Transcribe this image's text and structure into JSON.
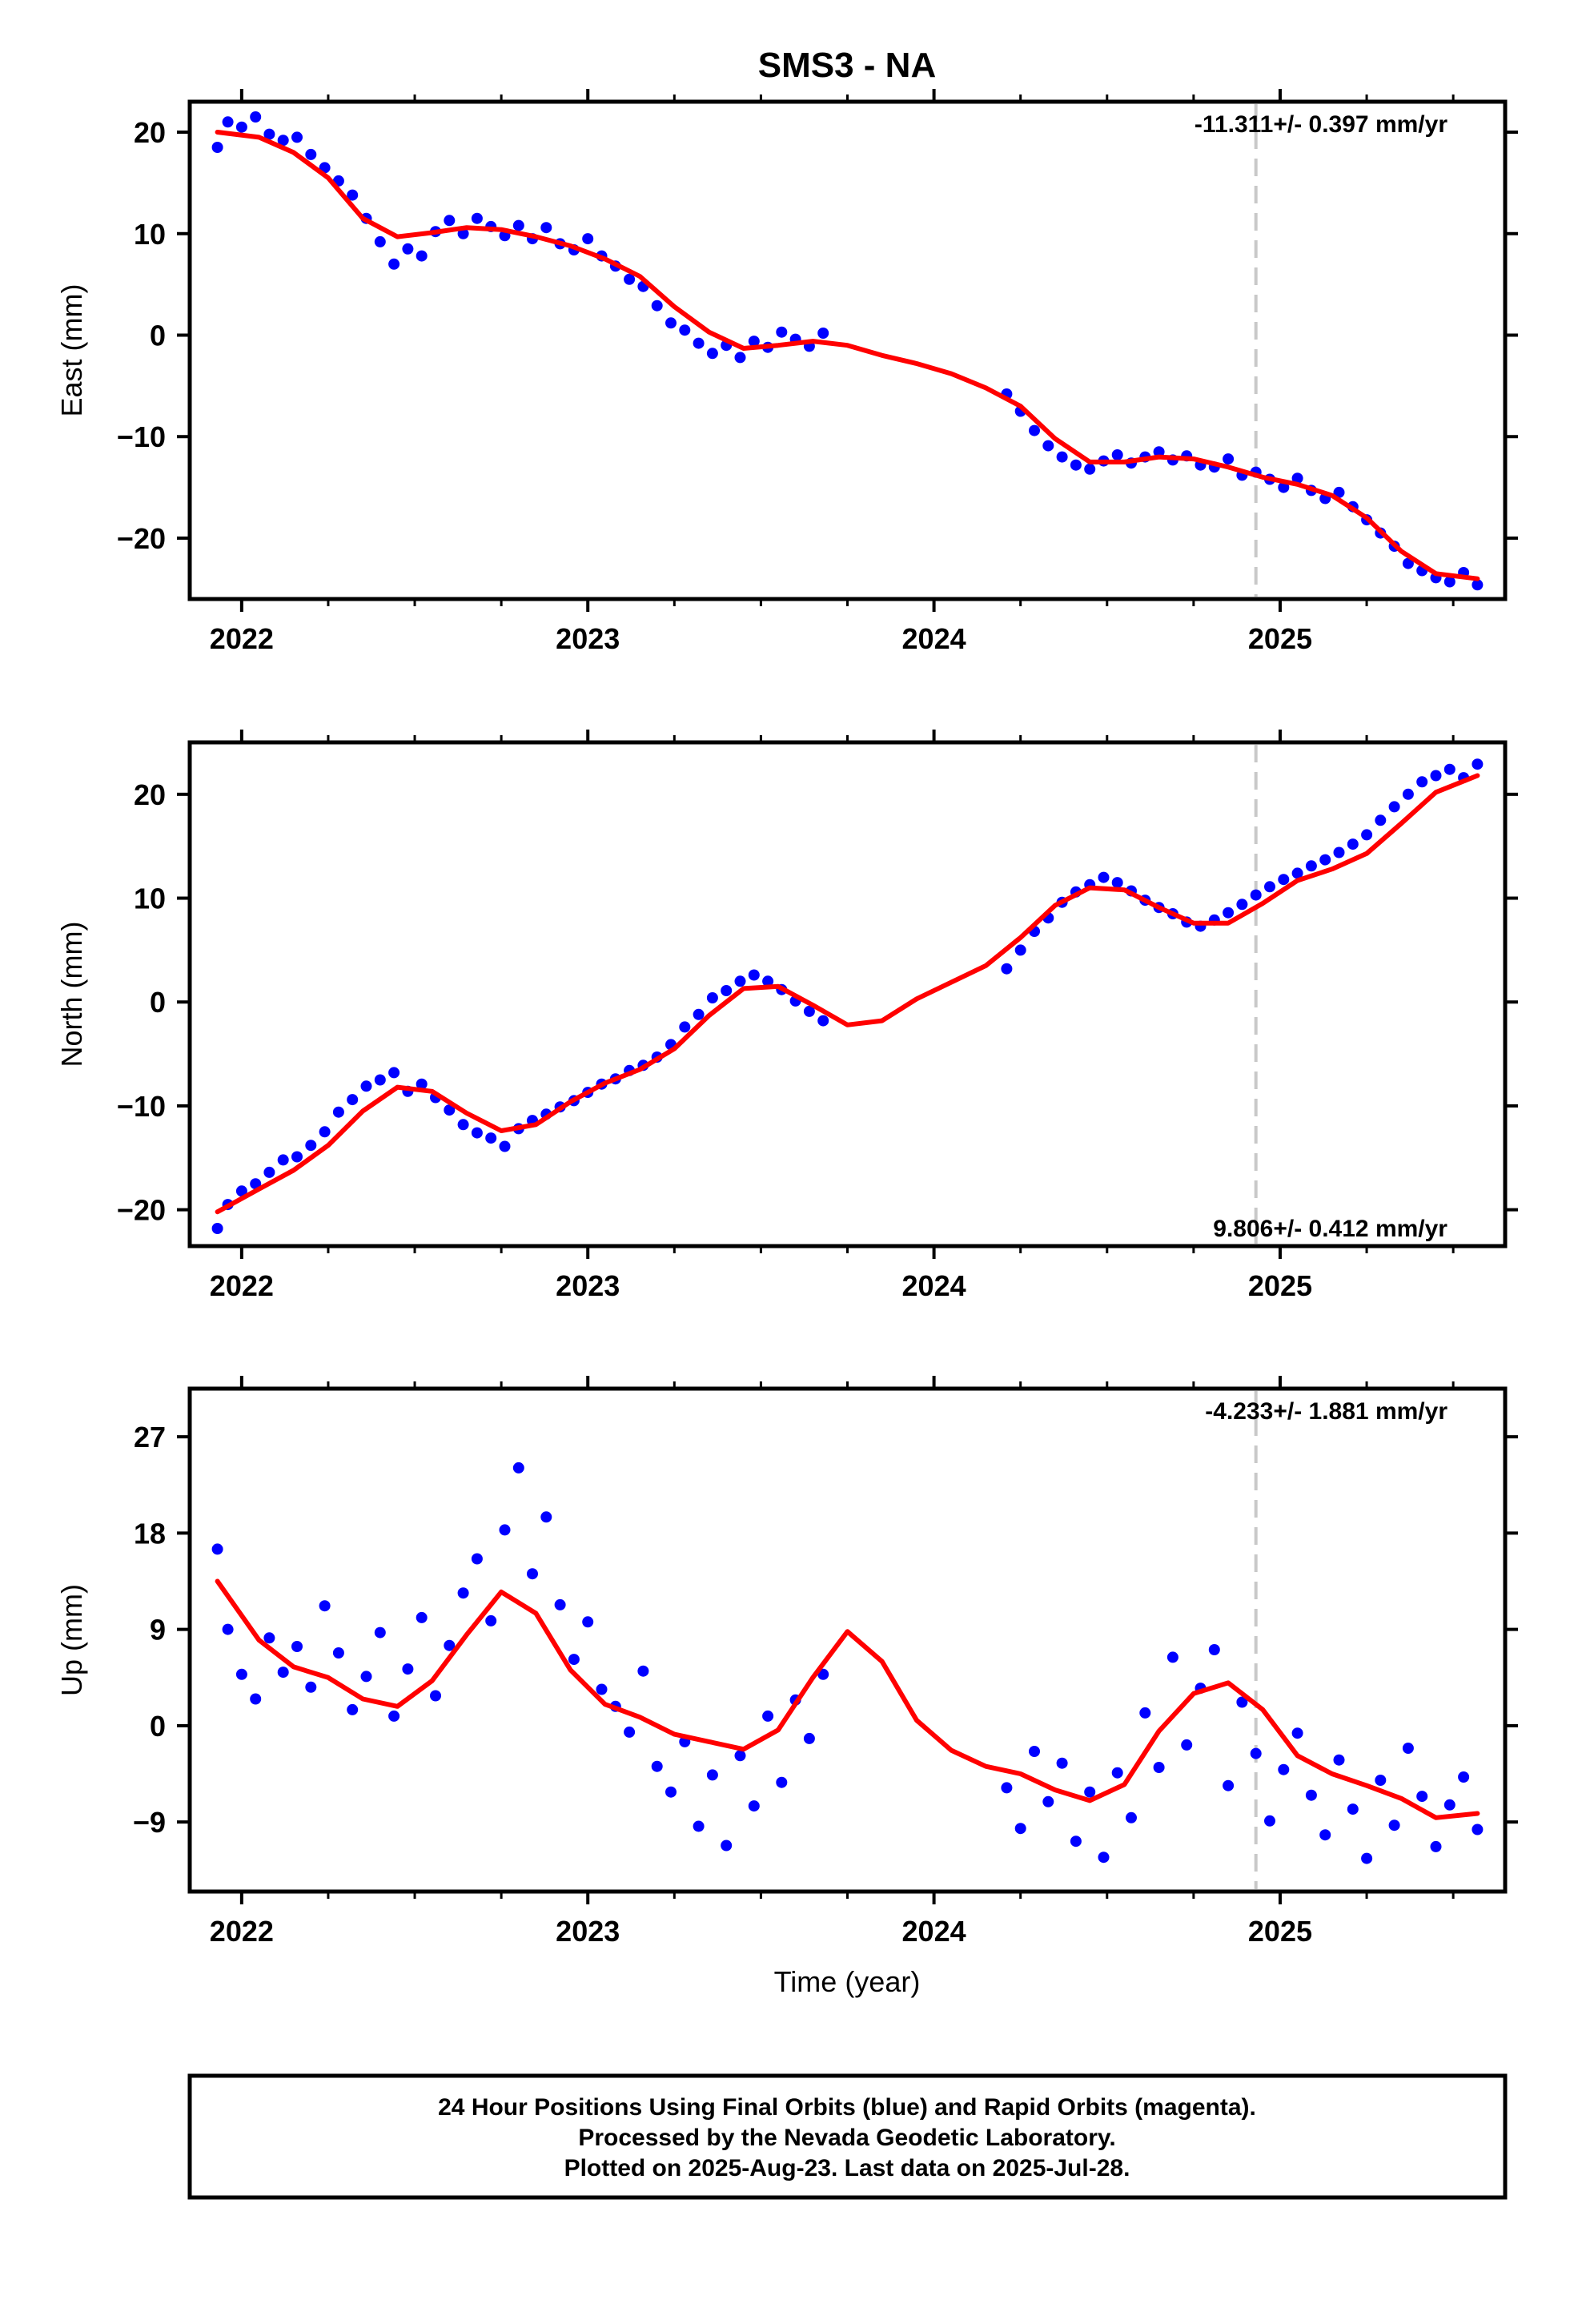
{
  "title": "SMS3 - NA",
  "colors": {
    "final_orbit_points": "#0000ff",
    "model_curve": "#ff0000",
    "reference_line": "#c8c8c8",
    "frame": "#000000"
  },
  "xaxis": {
    "title": "Time (year)",
    "ticks": [
      "2022",
      "2023",
      "2024",
      "2025"
    ]
  },
  "caption": {
    "line1": "24 Hour Positions Using Final Orbits (blue) and Rapid Orbits (magenta).",
    "line2": "Processed by the Nevada Geodetic Laboratory.",
    "line3": "Plotted on 2025-Aug-23. Last data on 2025-Jul-28."
  },
  "chart_data": [
    {
      "type": "scatter",
      "ylabel": "East (mm)",
      "rate_label": "-11.311+/- 0.397 mm/yr",
      "rate_label_position": "top-right",
      "ylim": [
        -26,
        23
      ],
      "xlim": [
        2021.85,
        2025.65
      ],
      "yticks": [
        20,
        10,
        0,
        -10,
        -20
      ],
      "ytick_labels": [
        "20",
        "10",
        "0",
        "−10",
        "−20"
      ],
      "reference_line_x": 2024.93,
      "model_curve": {
        "x": [
          2021.93,
          2022.05,
          2022.15,
          2022.25,
          2022.35,
          2022.45,
          2022.55,
          2022.65,
          2022.75,
          2022.85,
          2022.95,
          2023.05,
          2023.15,
          2023.25,
          2023.35,
          2023.45,
          2023.55,
          2023.65,
          2023.75,
          2023.85,
          2023.95,
          2024.05,
          2024.15,
          2024.25,
          2024.35,
          2024.45,
          2024.55,
          2024.65,
          2024.75,
          2024.85,
          2024.95,
          2025.05,
          2025.15,
          2025.25,
          2025.35,
          2025.45,
          2025.57
        ],
        "y": [
          20,
          19.5,
          18,
          15.5,
          11.5,
          9.7,
          10.1,
          10.6,
          10.4,
          9.7,
          8.8,
          7.5,
          5.8,
          2.8,
          0.3,
          -1.3,
          -1,
          -0.6,
          -1,
          -2,
          -2.8,
          -3.8,
          -5.2,
          -7,
          -10.2,
          -12.5,
          -12.5,
          -12,
          -12.2,
          -13,
          -14,
          -14.7,
          -15.8,
          -18,
          -21.3,
          -23.5,
          -24
        ]
      },
      "points": {
        "x": [
          2021.93,
          2021.96,
          2022.0,
          2022.04,
          2022.08,
          2022.12,
          2022.16,
          2022.2,
          2022.24,
          2022.28,
          2022.32,
          2022.36,
          2022.4,
          2022.44,
          2022.48,
          2022.52,
          2022.56,
          2022.6,
          2022.64,
          2022.68,
          2022.72,
          2022.76,
          2022.8,
          2022.84,
          2022.88,
          2022.92,
          2022.96,
          2023.0,
          2023.04,
          2023.08,
          2023.12,
          2023.16,
          2023.2,
          2023.24,
          2023.28,
          2023.32,
          2023.36,
          2023.4,
          2023.44,
          2023.48,
          2023.52,
          2023.56,
          2023.6,
          2023.64,
          2023.68,
          2024.21,
          2024.25,
          2024.29,
          2024.33,
          2024.37,
          2024.41,
          2024.45,
          2024.49,
          2024.53,
          2024.57,
          2024.61,
          2024.65,
          2024.69,
          2024.73,
          2024.77,
          2024.81,
          2024.85,
          2024.89,
          2024.93,
          2024.97,
          2025.01,
          2025.05,
          2025.09,
          2025.13,
          2025.17,
          2025.21,
          2025.25,
          2025.29,
          2025.33,
          2025.37,
          2025.41,
          2025.45,
          2025.49,
          2025.53,
          2025.57
        ],
        "y": [
          18.5,
          21.0,
          20.5,
          21.5,
          19.8,
          19.2,
          19.5,
          17.8,
          16.5,
          15.2,
          13.8,
          11.5,
          9.2,
          7.0,
          8.5,
          7.8,
          10.2,
          11.3,
          10.0,
          11.5,
          10.7,
          9.8,
          10.8,
          9.5,
          10.6,
          9.0,
          8.4,
          9.5,
          7.8,
          6.8,
          5.5,
          4.8,
          2.9,
          1.2,
          0.5,
          -0.8,
          -1.8,
          -1.0,
          -2.2,
          -0.6,
          -1.2,
          0.3,
          -0.4,
          -1.1,
          0.2,
          -5.8,
          -7.5,
          -9.4,
          -10.9,
          -12.0,
          -12.8,
          -13.2,
          -12.4,
          -11.8,
          -12.6,
          -12.0,
          -11.5,
          -12.3,
          -11.9,
          -12.8,
          -13.0,
          -12.2,
          -13.8,
          -13.5,
          -14.2,
          -15.0,
          -14.1,
          -15.3,
          -16.1,
          -15.5,
          -16.9,
          -18.2,
          -19.5,
          -20.8,
          -22.5,
          -23.2,
          -23.9,
          -24.3,
          -23.4,
          -24.6
        ]
      }
    },
    {
      "type": "scatter",
      "ylabel": "North (mm)",
      "rate_label": "9.806+/- 0.412 mm/yr",
      "rate_label_position": "bottom-right",
      "ylim": [
        -23.5,
        25
      ],
      "xlim": [
        2021.85,
        2025.65
      ],
      "yticks": [
        20,
        10,
        0,
        -10,
        -20
      ],
      "ytick_labels": [
        "20",
        "10",
        "0",
        "−10",
        "−20"
      ],
      "reference_line_x": 2024.93,
      "model_curve": {
        "x": [
          2021.93,
          2022.05,
          2022.15,
          2022.25,
          2022.35,
          2022.45,
          2022.55,
          2022.65,
          2022.75,
          2022.85,
          2022.95,
          2023.05,
          2023.15,
          2023.25,
          2023.35,
          2023.45,
          2023.55,
          2023.65,
          2023.75,
          2023.85,
          2023.95,
          2024.05,
          2024.15,
          2024.25,
          2024.35,
          2024.45,
          2024.55,
          2024.65,
          2024.75,
          2024.85,
          2024.95,
          2025.05,
          2025.15,
          2025.25,
          2025.35,
          2025.45,
          2025.57
        ],
        "y": [
          -20.2,
          -18,
          -16.2,
          -13.8,
          -10.5,
          -8.2,
          -8.6,
          -10.7,
          -12.4,
          -11.8,
          -9.6,
          -7.8,
          -6.5,
          -4.5,
          -1.3,
          1.3,
          1.5,
          -0.3,
          -2.2,
          -1.8,
          0.3,
          1.9,
          3.5,
          6.2,
          9.3,
          11,
          10.8,
          9.1,
          7.6,
          7.6,
          9.5,
          11.7,
          12.8,
          14.3,
          17.2,
          20.2,
          21.8
        ]
      },
      "points": {
        "x": [
          2021.93,
          2021.96,
          2022.0,
          2022.04,
          2022.08,
          2022.12,
          2022.16,
          2022.2,
          2022.24,
          2022.28,
          2022.32,
          2022.36,
          2022.4,
          2022.44,
          2022.48,
          2022.52,
          2022.56,
          2022.6,
          2022.64,
          2022.68,
          2022.72,
          2022.76,
          2022.8,
          2022.84,
          2022.88,
          2022.92,
          2022.96,
          2023.0,
          2023.04,
          2023.08,
          2023.12,
          2023.16,
          2023.2,
          2023.24,
          2023.28,
          2023.32,
          2023.36,
          2023.4,
          2023.44,
          2023.48,
          2023.52,
          2023.56,
          2023.6,
          2023.64,
          2023.68,
          2024.21,
          2024.25,
          2024.29,
          2024.33,
          2024.37,
          2024.41,
          2024.45,
          2024.49,
          2024.53,
          2024.57,
          2024.61,
          2024.65,
          2024.69,
          2024.73,
          2024.77,
          2024.81,
          2024.85,
          2024.89,
          2024.93,
          2024.97,
          2025.01,
          2025.05,
          2025.09,
          2025.13,
          2025.17,
          2025.21,
          2025.25,
          2025.29,
          2025.33,
          2025.37,
          2025.41,
          2025.45,
          2025.49,
          2025.53,
          2025.57
        ],
        "y": [
          -21.8,
          -19.5,
          -18.2,
          -17.5,
          -16.4,
          -15.2,
          -14.9,
          -13.8,
          -12.5,
          -10.6,
          -9.4,
          -8.1,
          -7.5,
          -6.8,
          -8.6,
          -7.9,
          -9.2,
          -10.4,
          -11.8,
          -12.6,
          -13.1,
          -13.9,
          -12.2,
          -11.4,
          -10.8,
          -10.1,
          -9.5,
          -8.7,
          -7.9,
          -7.4,
          -6.6,
          -6.1,
          -5.3,
          -4.1,
          -2.4,
          -1.2,
          0.4,
          1.1,
          2.0,
          2.6,
          2.0,
          1.2,
          0.1,
          -0.9,
          -1.8,
          3.2,
          5.0,
          6.8,
          8.1,
          9.6,
          10.6,
          11.3,
          12.0,
          11.5,
          10.7,
          9.8,
          9.1,
          8.5,
          7.7,
          7.3,
          7.9,
          8.6,
          9.4,
          10.3,
          11.1,
          11.8,
          12.4,
          13.1,
          13.7,
          14.4,
          15.2,
          16.1,
          17.5,
          18.8,
          20.0,
          21.2,
          21.8,
          22.4,
          21.6,
          22.9
        ]
      }
    },
    {
      "type": "scatter",
      "ylabel": "Up (mm)",
      "xlabel": "Time (year)",
      "rate_label": "-4.233+/- 1.881 mm/yr",
      "rate_label_position": "top-right",
      "ylim": [
        -15.5,
        31.5
      ],
      "xlim": [
        2021.85,
        2025.65
      ],
      "yticks": [
        27,
        18,
        9,
        0,
        -9
      ],
      "ytick_labels": [
        "27",
        "18",
        "9",
        "0",
        "−9"
      ],
      "reference_line_x": 2024.93,
      "model_curve": {
        "x": [
          2021.93,
          2022.05,
          2022.15,
          2022.25,
          2022.35,
          2022.45,
          2022.55,
          2022.65,
          2022.75,
          2022.85,
          2022.95,
          2023.05,
          2023.15,
          2023.25,
          2023.35,
          2023.45,
          2023.55,
          2023.65,
          2023.75,
          2023.85,
          2023.95,
          2024.05,
          2024.15,
          2024.25,
          2024.35,
          2024.45,
          2024.55,
          2024.65,
          2024.75,
          2024.85,
          2024.95,
          2025.05,
          2025.15,
          2025.25,
          2025.35,
          2025.45,
          2025.57
        ],
        "y": [
          13.5,
          8,
          5.5,
          4.5,
          2.5,
          1.8,
          4.2,
          8.5,
          12.5,
          10.5,
          5.2,
          2,
          0.8,
          -0.8,
          -1.5,
          -2.2,
          -0.4,
          4.5,
          8.8,
          6,
          0.5,
          -2.3,
          -3.8,
          -4.5,
          -6,
          -7,
          -5.5,
          -0.5,
          3,
          4,
          1.5,
          -2.8,
          -4.5,
          -5.6,
          -6.8,
          -8.6,
          -8.2
        ]
      },
      "points": {
        "x": [
          2021.93,
          2021.96,
          2022.0,
          2022.04,
          2022.08,
          2022.12,
          2022.16,
          2022.2,
          2022.24,
          2022.28,
          2022.32,
          2022.36,
          2022.4,
          2022.44,
          2022.48,
          2022.52,
          2022.56,
          2022.6,
          2022.64,
          2022.68,
          2022.72,
          2022.76,
          2022.8,
          2022.84,
          2022.88,
          2022.92,
          2022.96,
          2023.0,
          2023.04,
          2023.08,
          2023.12,
          2023.16,
          2023.2,
          2023.24,
          2023.28,
          2023.32,
          2023.36,
          2023.4,
          2023.44,
          2023.48,
          2023.52,
          2023.56,
          2023.6,
          2023.64,
          2023.68,
          2024.21,
          2024.25,
          2024.29,
          2024.33,
          2024.37,
          2024.41,
          2024.45,
          2024.49,
          2024.53,
          2024.57,
          2024.61,
          2024.65,
          2024.69,
          2024.73,
          2024.77,
          2024.81,
          2024.85,
          2024.89,
          2024.93,
          2024.97,
          2025.01,
          2025.05,
          2025.09,
          2025.13,
          2025.17,
          2025.21,
          2025.25,
          2025.29,
          2025.33,
          2025.37,
          2025.41,
          2025.45,
          2025.49,
          2025.53,
          2025.57
        ],
        "y": [
          16.5,
          9.0,
          4.8,
          2.5,
          8.2,
          5.0,
          7.4,
          3.6,
          11.2,
          6.8,
          1.5,
          4.6,
          8.7,
          0.9,
          5.3,
          10.1,
          2.8,
          7.5,
          12.4,
          15.6,
          9.8,
          18.3,
          24.1,
          14.2,
          19.5,
          11.3,
          6.2,
          9.7,
          3.4,
          1.8,
          -0.6,
          5.1,
          -3.8,
          -6.2,
          -1.5,
          -9.4,
          -4.6,
          -11.2,
          -2.8,
          -7.5,
          0.9,
          -5.3,
          2.4,
          -1.2,
          4.8,
          -5.8,
          -9.6,
          -2.4,
          -7.1,
          -3.5,
          -10.8,
          -6.2,
          -12.3,
          -4.4,
          -8.6,
          1.2,
          -3.9,
          6.4,
          -1.8,
          3.5,
          7.1,
          -5.6,
          2.2,
          -2.6,
          -8.9,
          -4.1,
          -0.7,
          -6.5,
          -10.2,
          -3.2,
          -7.8,
          -12.4,
          -5.1,
          -9.3,
          -2.1,
          -6.6,
          -11.3,
          -7.4,
          -4.8,
          -9.7
        ]
      }
    }
  ]
}
